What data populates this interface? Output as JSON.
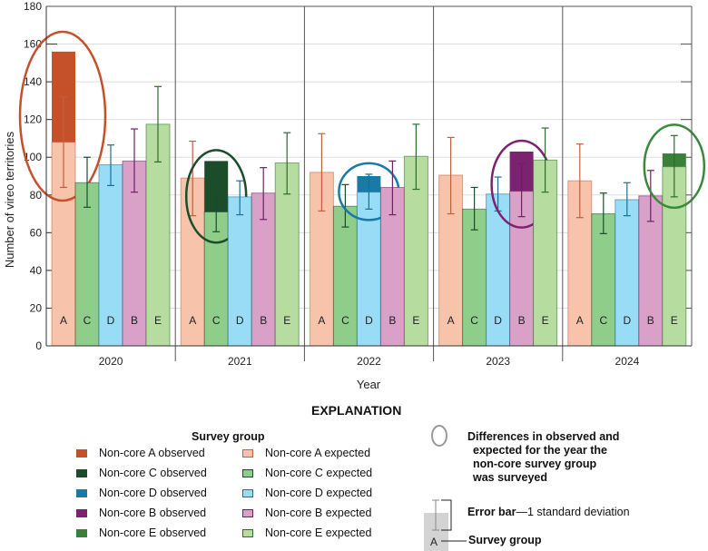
{
  "chart_data": {
    "type": "bar",
    "ylabel": "Number of vireo territories",
    "xlabel": "Year",
    "ylim": [
      0,
      180
    ],
    "yticks": [
      0,
      20,
      40,
      60,
      80,
      100,
      120,
      140,
      160,
      180
    ],
    "grid": true,
    "years": [
      "2020",
      "2021",
      "2022",
      "2023",
      "2024"
    ],
    "groups": [
      "A",
      "C",
      "D",
      "B",
      "E"
    ],
    "colors": {
      "A": {
        "observed": "#c4512a",
        "expected": "#f7c4ab",
        "line": "#c0603f"
      },
      "C": {
        "observed": "#1b4d2a",
        "expected": "#8ecd8a",
        "line": "#1b4d2a"
      },
      "D": {
        "observed": "#1a7aa5",
        "expected": "#99dcf5",
        "line": "#1a6f96"
      },
      "B": {
        "observed": "#7b2370",
        "expected": "#d9a0c8",
        "line": "#6e2064"
      },
      "E": {
        "observed": "#3a7f3a",
        "expected": "#b6dca0",
        "line": "#2f6a2f"
      }
    },
    "expected": {
      "2020": {
        "A": 108,
        "C": 86.5,
        "D": 96,
        "B": 98,
        "E": 117.5
      },
      "2021": {
        "A": 89,
        "C": 71,
        "D": 79,
        "B": 81,
        "E": 97
      },
      "2022": {
        "A": 92,
        "C": 74,
        "D": 81.5,
        "B": 84,
        "E": 100.5
      },
      "2023": {
        "A": 90.5,
        "C": 72.5,
        "D": 80.5,
        "B": 82,
        "E": 98.5
      },
      "2024": {
        "A": 87.5,
        "C": 70,
        "D": 77.5,
        "B": 79.5,
        "E": 95
      }
    },
    "observed": {
      "2020": {
        "A": 156
      },
      "2021": {
        "C": 98
      },
      "2022": {
        "D": 90
      },
      "2023": {
        "B": 103
      },
      "2024": {
        "E": 102
      }
    },
    "error_bars": {
      "2020": {
        "A": [
          84,
          132
        ],
        "C": [
          73.5,
          100
        ],
        "D": [
          85,
          106.5
        ],
        "B": [
          81.5,
          115
        ],
        "E": [
          97.5,
          137.5
        ]
      },
      "2021": {
        "A": [
          69,
          108.5
        ],
        "C": [
          60.5,
          82.5
        ],
        "D": [
          69.5,
          87.5
        ],
        "B": [
          67,
          94.5
        ],
        "E": [
          80.5,
          113
        ]
      },
      "2022": {
        "A": [
          71.5,
          112.5
        ],
        "C": [
          63,
          85.5
        ],
        "D": [
          72.5,
          91
        ],
        "B": [
          69.5,
          98
        ],
        "E": [
          83,
          117.5
        ]
      },
      "2023": {
        "A": [
          70,
          110.5
        ],
        "C": [
          61.5,
          84
        ],
        "D": [
          71.5,
          89.5
        ],
        "B": [
          68.5,
          96.5
        ],
        "E": [
          81.5,
          115.5
        ]
      },
      "2024": {
        "A": [
          68,
          107
        ],
        "C": [
          59.5,
          81
        ],
        "D": [
          69,
          86.5
        ],
        "B": [
          66,
          93
        ],
        "E": [
          79,
          111.5
        ]
      }
    },
    "circled": {
      "2020": "A",
      "2021": "C",
      "2022": "D",
      "2023": "B",
      "2024": "E"
    }
  },
  "legend": {
    "title": "EXPLANATION",
    "subtitle": "Survey group",
    "observed": [
      "Non-core A observed",
      "Non-core C observed",
      "Non-core D observed",
      "Non-core B observed",
      "Non-core E observed"
    ],
    "expected": [
      "Non-core A expected",
      "Non-core C expected",
      "Non-core D expected",
      "Non-core B expected",
      "Non-core E expected"
    ],
    "circle_lines": [
      "Differences in observed and",
      "expected for the year the",
      "non-core survey group",
      "was surveyed"
    ],
    "errorbar_bold": "Error bar",
    "errorbar_text": "—1 standard deviation",
    "sample_letter": "A",
    "survey_group_label": "Survey group",
    "circle_color": "#999999"
  }
}
